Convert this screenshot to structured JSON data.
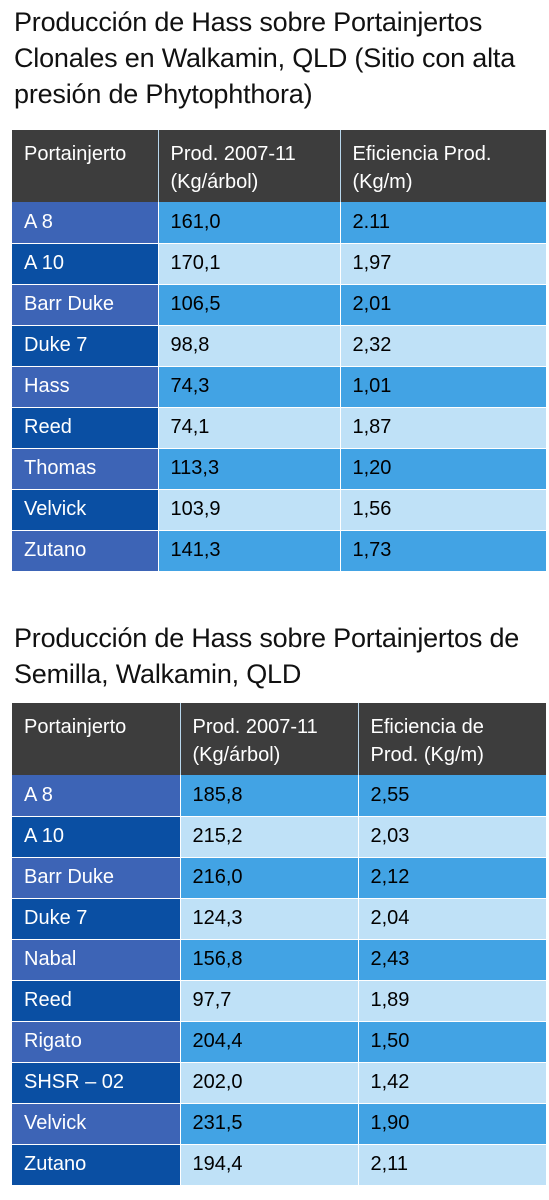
{
  "table1": {
    "title": "Producción de Hass sobre Portainjertos Clonales en Walkamin, QLD (Sitio con alta presión de Phytophthora)",
    "headers": [
      "Portainjerto",
      "Prod. 2007-11 (Kg/árbol)",
      "Eficiencia Prod. (Kg/m)"
    ],
    "rows": [
      [
        "A 8",
        "161,0",
        "2.11"
      ],
      [
        "A 10",
        "170,1",
        "1,97"
      ],
      [
        "Barr Duke",
        "106,5",
        "2,01"
      ],
      [
        "Duke 7",
        "98,8",
        "2,32"
      ],
      [
        "Hass",
        "74,3",
        "1,01"
      ],
      [
        "Reed",
        "74,1",
        "1,87"
      ],
      [
        "Thomas",
        "113,3",
        "1,20"
      ],
      [
        "Velvick",
        "103,9",
        "1,56"
      ],
      [
        "Zutano",
        "141,3",
        "1,73"
      ]
    ]
  },
  "table2": {
    "title": "Producción de Hass sobre Portainjertos de Semilla, Walkamin, QLD",
    "headers": [
      "Portainjerto",
      "Prod. 2007-11 (Kg/árbol)",
      "Eficiencia de Prod. (Kg/m)"
    ],
    "rows": [
      [
        "A 8",
        "185,8",
        "2,55"
      ],
      [
        "A 10",
        "215,2",
        "2,03"
      ],
      [
        "Barr Duke",
        "216,0",
        "2,12"
      ],
      [
        "Duke 7",
        "124,3",
        "2,04"
      ],
      [
        "Nabal",
        "156,8",
        "2,43"
      ],
      [
        "Reed",
        "97,7",
        "1,89"
      ],
      [
        "Rigato",
        "204,4",
        "1,50"
      ],
      [
        "SHSR – 02",
        "202,0",
        "1,42"
      ],
      [
        "Velvick",
        "231,5",
        "1,90"
      ],
      [
        "Zutano",
        "194,4",
        "2,11"
      ]
    ]
  },
  "colors": {
    "header_bg": "#3d3d3d",
    "name_odd": "#3d64b6",
    "name_even": "#0a4fa3",
    "value_odd": "#42a3e4",
    "value_even": "#bfe1f7"
  }
}
